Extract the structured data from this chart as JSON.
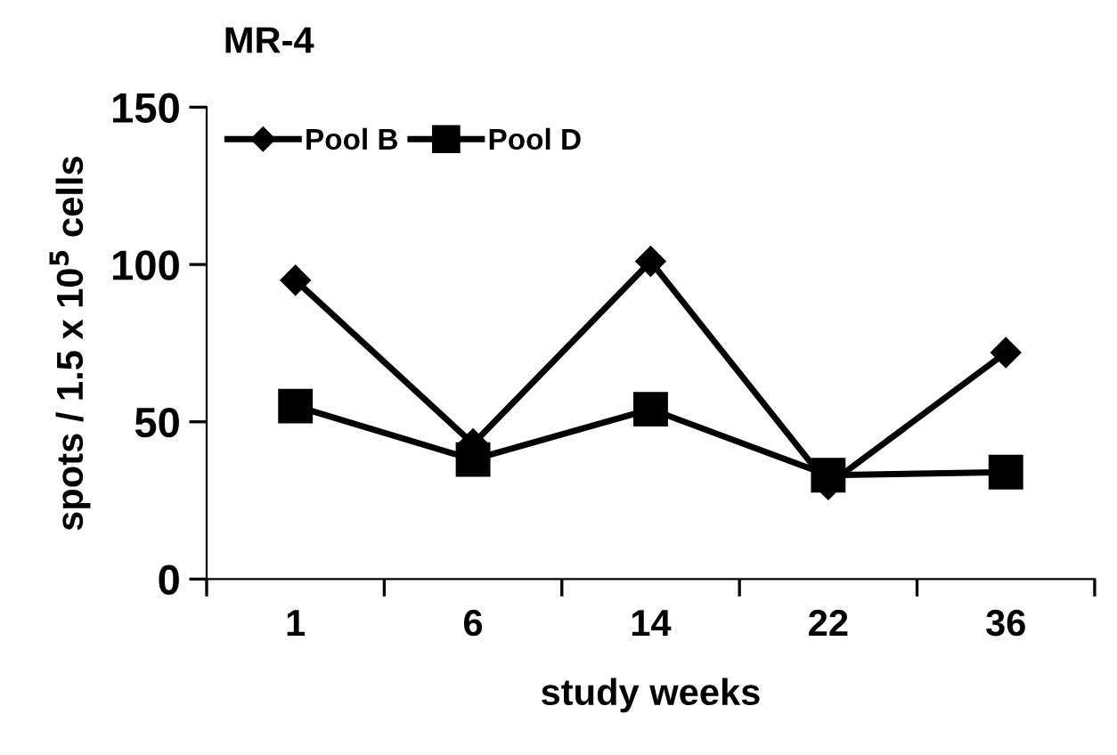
{
  "chart_data": {
    "type": "line",
    "title": "MR-4",
    "xlabel": "study weeks",
    "ylabel": "spots / 1.5 x 10$^{5}$ cells",
    "categories": [
      "1",
      "6",
      "14",
      "22",
      "36"
    ],
    "series": [
      {
        "name": "Pool B",
        "color": "#000000",
        "marker": "diamond",
        "values": [
          95,
          43,
          101,
          30,
          72
        ]
      },
      {
        "name": "Pool D",
        "color": "#000000",
        "marker": "square",
        "values": [
          55,
          38,
          54,
          33,
          34
        ]
      }
    ],
    "ylim": [
      0,
      150
    ],
    "yticks": [
      0,
      50,
      100,
      150
    ],
    "grid": false,
    "legend": "top left",
    "line_style": "solid"
  }
}
